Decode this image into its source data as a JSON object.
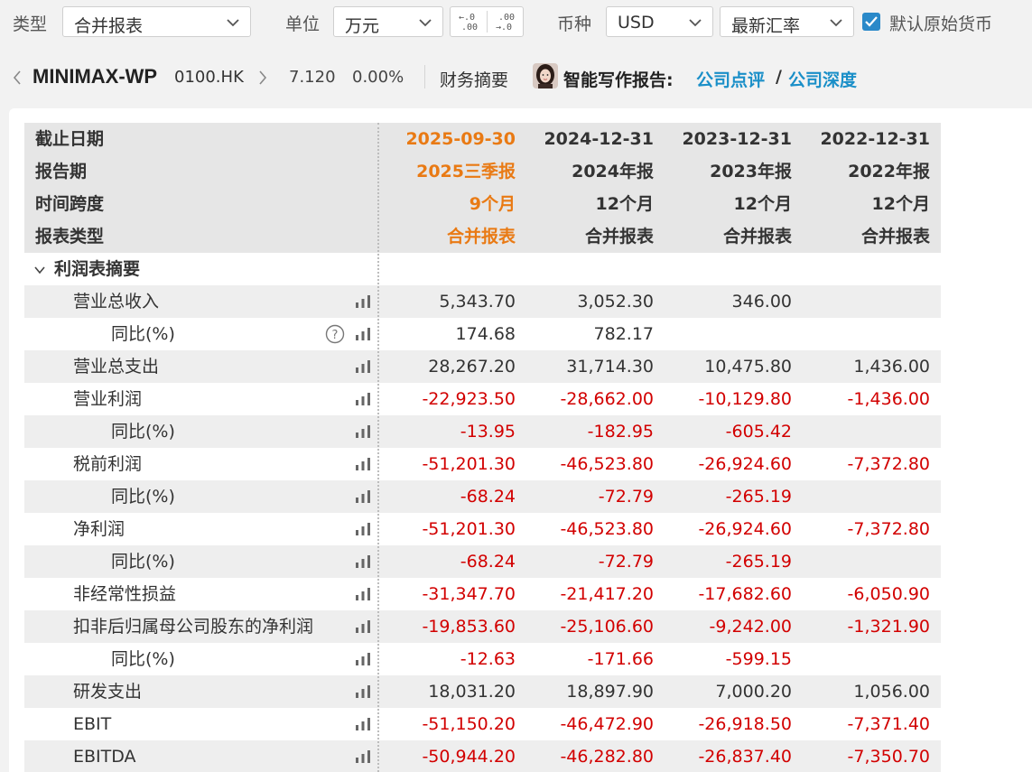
{
  "toolbar": {
    "type_label": "类型",
    "type_value": "合并报表",
    "unit_label": "单位",
    "unit_value": "万元",
    "decimal_decrease": "←.0\n.00",
    "decimal_increase": ".00\n→.0",
    "currency_label": "币种",
    "currency_value": "USD",
    "rate_value": "最新汇率",
    "default_currency_label": "默认原始货币",
    "default_currency_checked": true
  },
  "stock": {
    "name": "MINIMAX-WP",
    "code": "0100.HK",
    "price": "7.120",
    "change": "0.00%",
    "summary_label": "财务摘要",
    "ai_report_label": "智能写作报告:",
    "link_review": "公司点评",
    "slash": "/",
    "link_depth": "公司深度"
  },
  "header_rows": [
    {
      "label": "截止日期",
      "v": [
        "2025-09-30",
        "2024-12-31",
        "2023-12-31",
        "2022-12-31"
      ]
    },
    {
      "label": "报告期",
      "v": [
        "2025三季报",
        "2024年报",
        "2023年报",
        "2022年报"
      ]
    },
    {
      "label": "时间跨度",
      "v": [
        "9个月",
        "12个月",
        "12个月",
        "12个月"
      ]
    },
    {
      "label": "报表类型",
      "v": [
        "合并报表",
        "合并报表",
        "合并报表",
        "合并报表"
      ]
    }
  ],
  "section": {
    "label": "利润表摘要"
  },
  "rows": [
    {
      "label": "营业总收入",
      "v": [
        "5,343.70",
        "3,052.30",
        "346.00",
        ""
      ]
    },
    {
      "label": "同比(%)",
      "v": [
        "174.68",
        "782.17",
        "",
        ""
      ]
    },
    {
      "label": "营业总支出",
      "v": [
        "28,267.20",
        "31,714.30",
        "10,475.80",
        "1,436.00"
      ]
    },
    {
      "label": "营业利润",
      "v": [
        "-22,923.50",
        "-28,662.00",
        "-10,129.80",
        "-1,436.00"
      ]
    },
    {
      "label": "同比(%)",
      "v": [
        "-13.95",
        "-182.95",
        "-605.42",
        ""
      ]
    },
    {
      "label": "税前利润",
      "v": [
        "-51,201.30",
        "-46,523.80",
        "-26,924.60",
        "-7,372.80"
      ]
    },
    {
      "label": "同比(%)",
      "v": [
        "-68.24",
        "-72.79",
        "-265.19",
        ""
      ]
    },
    {
      "label": "净利润",
      "v": [
        "-51,201.30",
        "-46,523.80",
        "-26,924.60",
        "-7,372.80"
      ]
    },
    {
      "label": "同比(%)",
      "v": [
        "-68.24",
        "-72.79",
        "-265.19",
        ""
      ]
    },
    {
      "label": "非经常性损益",
      "v": [
        "-31,347.70",
        "-21,417.20",
        "-17,682.60",
        "-6,050.90"
      ]
    },
    {
      "label": "扣非后归属母公司股东的净利润",
      "v": [
        "-19,853.60",
        "-25,106.60",
        "-9,242.00",
        "-1,321.90"
      ]
    },
    {
      "label": "同比(%)",
      "v": [
        "-12.63",
        "-171.66",
        "-599.15",
        ""
      ]
    },
    {
      "label": "研发支出",
      "v": [
        "18,031.20",
        "18,897.90",
        "7,000.20",
        "1,056.00"
      ]
    },
    {
      "label": "EBIT",
      "v": [
        "-51,150.20",
        "-46,472.90",
        "-26,918.50",
        "-7,371.40"
      ]
    },
    {
      "label": "EBITDA",
      "v": [
        "-50,944.20",
        "-46,282.80",
        "-26,837.40",
        "-7,350.70"
      ]
    }
  ],
  "colors": {
    "accent_orange": "#e97a14",
    "negative_red": "#d20000",
    "link_blue": "#1a8fc8",
    "checkbox_blue": "#2a89c9"
  }
}
